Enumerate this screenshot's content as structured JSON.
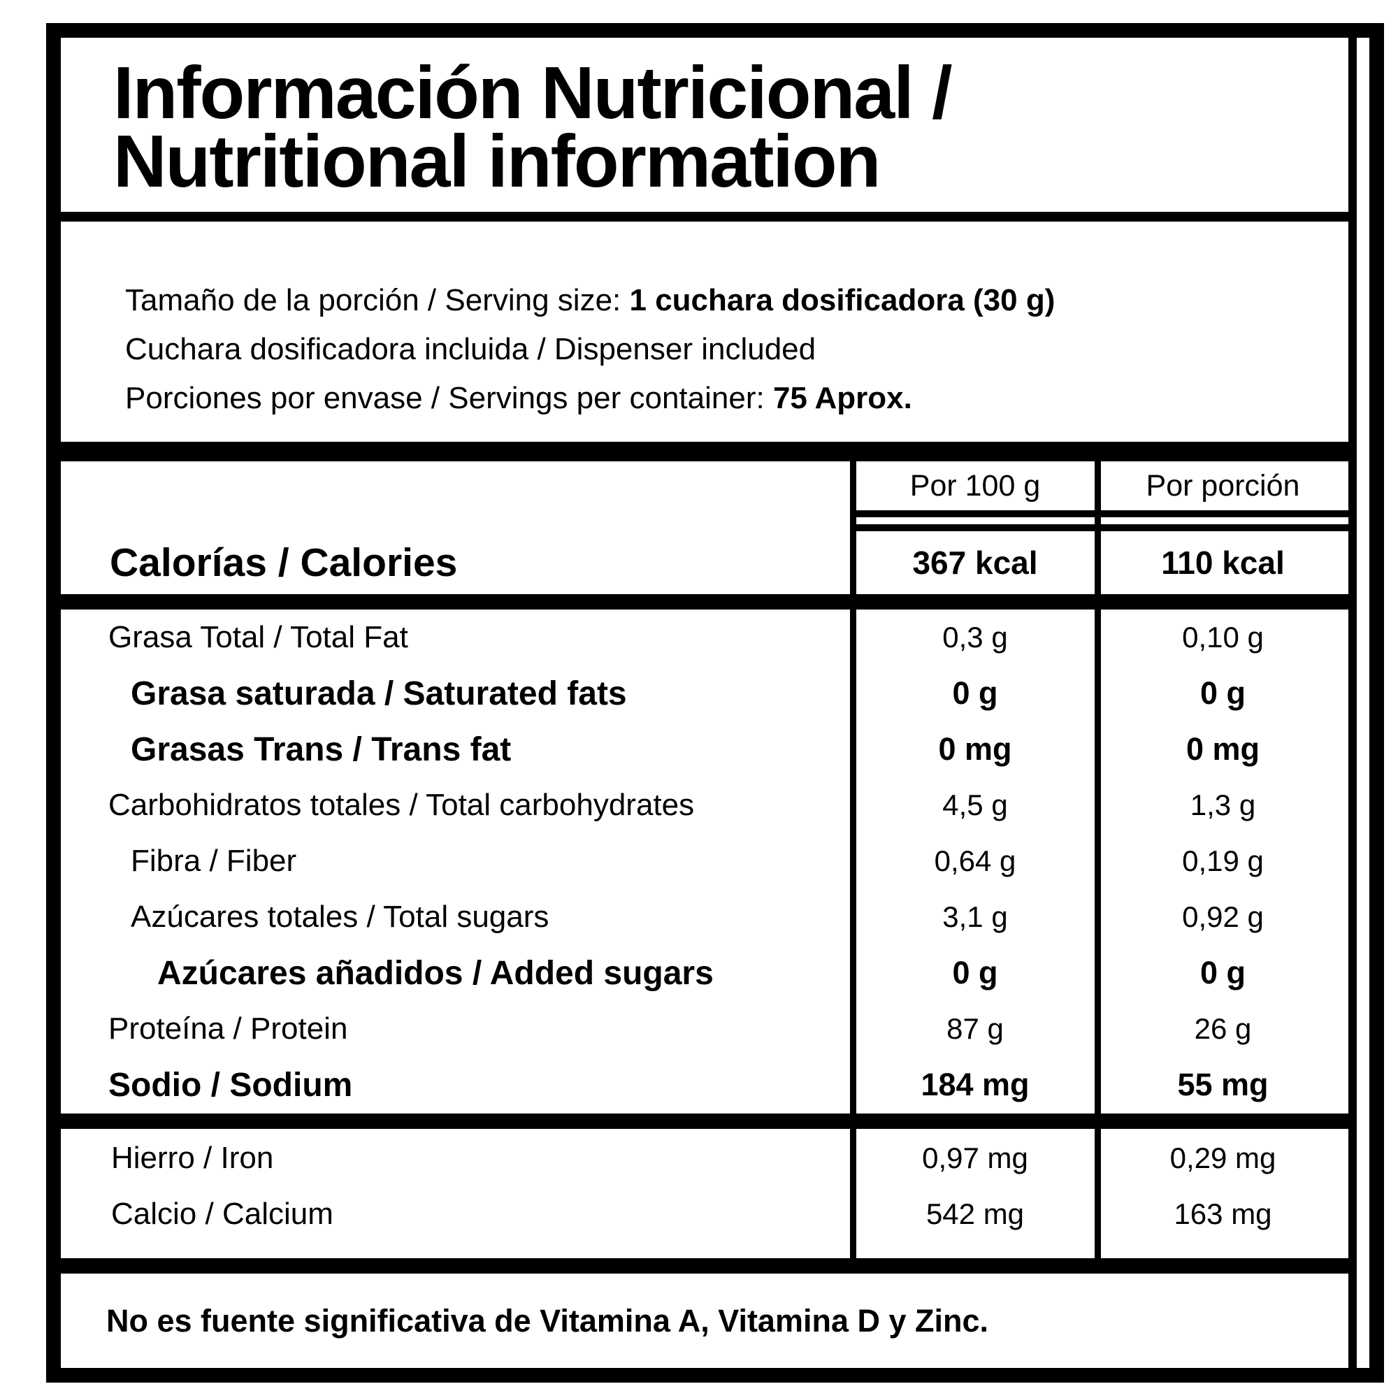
{
  "label": {
    "title": {
      "line1": "Información Nutricional /",
      "line2": "Nutritional information"
    },
    "serving": {
      "line1": {
        "text": "Tamaño de la porción / Serving size: ",
        "bold": "1 cuchara dosificadora (30 g)"
      },
      "line2": {
        "text": "Cuchara dosificadora incluida / Dispenser included",
        "bold": ""
      },
      "line3": {
        "text": "Porciones por envase / Servings per container: ",
        "bold": "75 Aprox."
      }
    },
    "columns": {
      "per_100g": "Por 100 g",
      "per_portion": "Por porción"
    },
    "calories": {
      "label": "Calorías / Calories",
      "per_100g": "367 kcal",
      "per_portion": "110 kcal"
    },
    "nutrients": [
      {
        "label": "Grasa Total / Total Fat",
        "per_100g": "0,3 g",
        "per_portion": "0,10 g"
      },
      {
        "label": "Grasa saturada / Saturated fats",
        "per_100g": "0 g",
        "per_portion": "0 g"
      },
      {
        "label": "Grasas Trans / Trans fat",
        "per_100g": "0 mg",
        "per_portion": "0 mg"
      },
      {
        "label": "Carbohidratos totales / Total carbohydrates",
        "per_100g": "4,5 g",
        "per_portion": "1,3 g"
      },
      {
        "label": "Fibra / Fiber",
        "per_100g": "0,64 g",
        "per_portion": "0,19 g"
      },
      {
        "label": "Azúcares totales / Total sugars",
        "per_100g": "3,1 g",
        "per_portion": "0,92 g"
      },
      {
        "label": "Azúcares añadidos / Added sugars",
        "per_100g": "0 g",
        "per_portion": "0 g"
      },
      {
        "label": "Proteína / Protein",
        "per_100g": "87 g",
        "per_portion": "26 g"
      },
      {
        "label": "Sodio / Sodium",
        "per_100g": "184 mg",
        "per_portion": "55 mg"
      }
    ],
    "minerals": [
      {
        "label": "Hierro / Iron",
        "per_100g": "0,97 mg",
        "per_portion": "0,29 mg"
      },
      {
        "label": "Calcio / Calcium",
        "per_100g": "542 mg",
        "per_portion": "163 mg"
      }
    ],
    "footnote": "No es fuente significativa de Vitamina A, Vitamina D y Zinc.",
    "colors": {
      "ink": "#000000",
      "paper": "#ffffff"
    }
  }
}
